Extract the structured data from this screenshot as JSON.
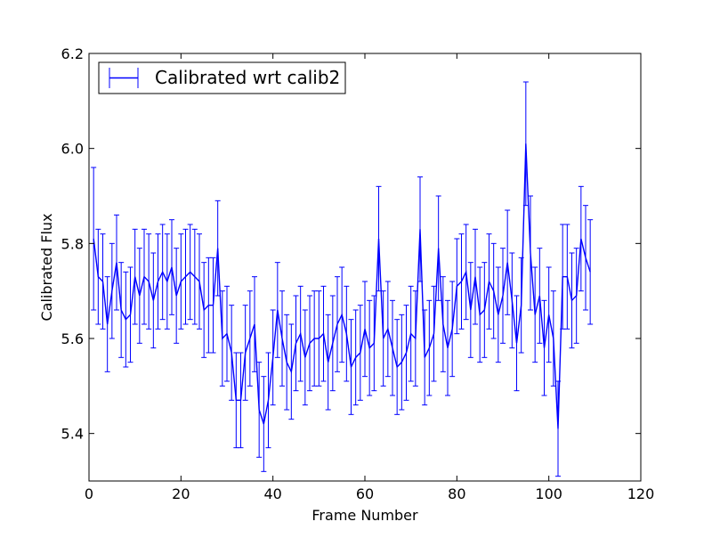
{
  "chart_data": {
    "type": "line",
    "title": "",
    "xlabel": "Frame Number",
    "ylabel": "Calibrated Flux",
    "xlim": [
      0,
      120
    ],
    "ylim": [
      5.3,
      6.2
    ],
    "xticks": [
      0,
      20,
      40,
      60,
      80,
      100,
      120
    ],
    "xtick_labels": [
      "0",
      "20",
      "40",
      "60",
      "80",
      "100",
      "120"
    ],
    "yticks": [
      5.4,
      5.6,
      5.8,
      6.0,
      6.2
    ],
    "ytick_labels": [
      "5.4",
      "5.6",
      "5.8",
      "6.0",
      "6.2"
    ],
    "grid": false,
    "legend_position": "top-left",
    "series": [
      {
        "name": "Calibrated wrt calib2",
        "color": "#0000ff",
        "x": [
          1,
          2,
          3,
          4,
          5,
          6,
          7,
          8,
          9,
          10,
          11,
          12,
          13,
          14,
          15,
          16,
          17,
          18,
          19,
          20,
          21,
          22,
          23,
          24,
          25,
          26,
          27,
          28,
          29,
          30,
          31,
          32,
          33,
          34,
          35,
          36,
          37,
          38,
          39,
          40,
          41,
          42,
          43,
          44,
          45,
          46,
          47,
          48,
          49,
          50,
          51,
          52,
          53,
          54,
          55,
          56,
          57,
          58,
          59,
          60,
          61,
          62,
          63,
          64,
          65,
          66,
          67,
          68,
          69,
          70,
          71,
          72,
          73,
          74,
          75,
          76,
          77,
          78,
          79,
          80,
          81,
          82,
          83,
          84,
          85,
          86,
          87,
          88,
          89,
          90,
          91,
          92,
          93,
          94,
          95,
          96,
          97,
          98,
          99,
          100,
          101,
          102,
          103,
          104,
          105,
          106,
          107,
          108,
          109
        ],
        "y": [
          5.81,
          5.73,
          5.72,
          5.63,
          5.7,
          5.76,
          5.66,
          5.64,
          5.65,
          5.73,
          5.69,
          5.73,
          5.72,
          5.68,
          5.72,
          5.74,
          5.72,
          5.75,
          5.69,
          5.72,
          5.73,
          5.74,
          5.73,
          5.72,
          5.66,
          5.67,
          5.67,
          5.79,
          5.6,
          5.61,
          5.57,
          5.47,
          5.47,
          5.57,
          5.6,
          5.63,
          5.45,
          5.42,
          5.47,
          5.56,
          5.66,
          5.6,
          5.55,
          5.53,
          5.59,
          5.61,
          5.56,
          5.59,
          5.6,
          5.6,
          5.61,
          5.55,
          5.59,
          5.63,
          5.65,
          5.61,
          5.54,
          5.56,
          5.57,
          5.62,
          5.58,
          5.59,
          5.81,
          5.6,
          5.62,
          5.58,
          5.54,
          5.55,
          5.57,
          5.61,
          5.6,
          5.83,
          5.56,
          5.58,
          5.61,
          5.79,
          5.63,
          5.58,
          5.62,
          5.71,
          5.72,
          5.74,
          5.66,
          5.73,
          5.65,
          5.66,
          5.72,
          5.7,
          5.65,
          5.69,
          5.76,
          5.68,
          5.59,
          5.67,
          6.01,
          5.78,
          5.65,
          5.69,
          5.58,
          5.65,
          5.6,
          5.41,
          5.73,
          5.73,
          5.68,
          5.69,
          5.81,
          5.77,
          5.74
        ],
        "yerr": [
          0.15,
          0.1,
          0.1,
          0.1,
          0.1,
          0.1,
          0.1,
          0.1,
          0.1,
          0.1,
          0.1,
          0.1,
          0.1,
          0.1,
          0.1,
          0.1,
          0.1,
          0.1,
          0.1,
          0.1,
          0.1,
          0.1,
          0.1,
          0.1,
          0.1,
          0.1,
          0.1,
          0.1,
          0.1,
          0.1,
          0.1,
          0.1,
          0.1,
          0.1,
          0.1,
          0.1,
          0.1,
          0.1,
          0.1,
          0.1,
          0.1,
          0.1,
          0.1,
          0.1,
          0.1,
          0.1,
          0.1,
          0.1,
          0.1,
          0.1,
          0.1,
          0.1,
          0.1,
          0.1,
          0.1,
          0.1,
          0.1,
          0.1,
          0.1,
          0.1,
          0.1,
          0.1,
          0.11,
          0.1,
          0.1,
          0.1,
          0.1,
          0.1,
          0.1,
          0.1,
          0.1,
          0.11,
          0.1,
          0.1,
          0.1,
          0.11,
          0.1,
          0.1,
          0.1,
          0.1,
          0.1,
          0.1,
          0.1,
          0.1,
          0.1,
          0.1,
          0.1,
          0.1,
          0.1,
          0.1,
          0.11,
          0.1,
          0.1,
          0.1,
          0.13,
          0.12,
          0.1,
          0.1,
          0.1,
          0.1,
          0.1,
          0.1,
          0.11,
          0.11,
          0.1,
          0.1,
          0.11,
          0.11,
          0.11
        ]
      }
    ]
  }
}
